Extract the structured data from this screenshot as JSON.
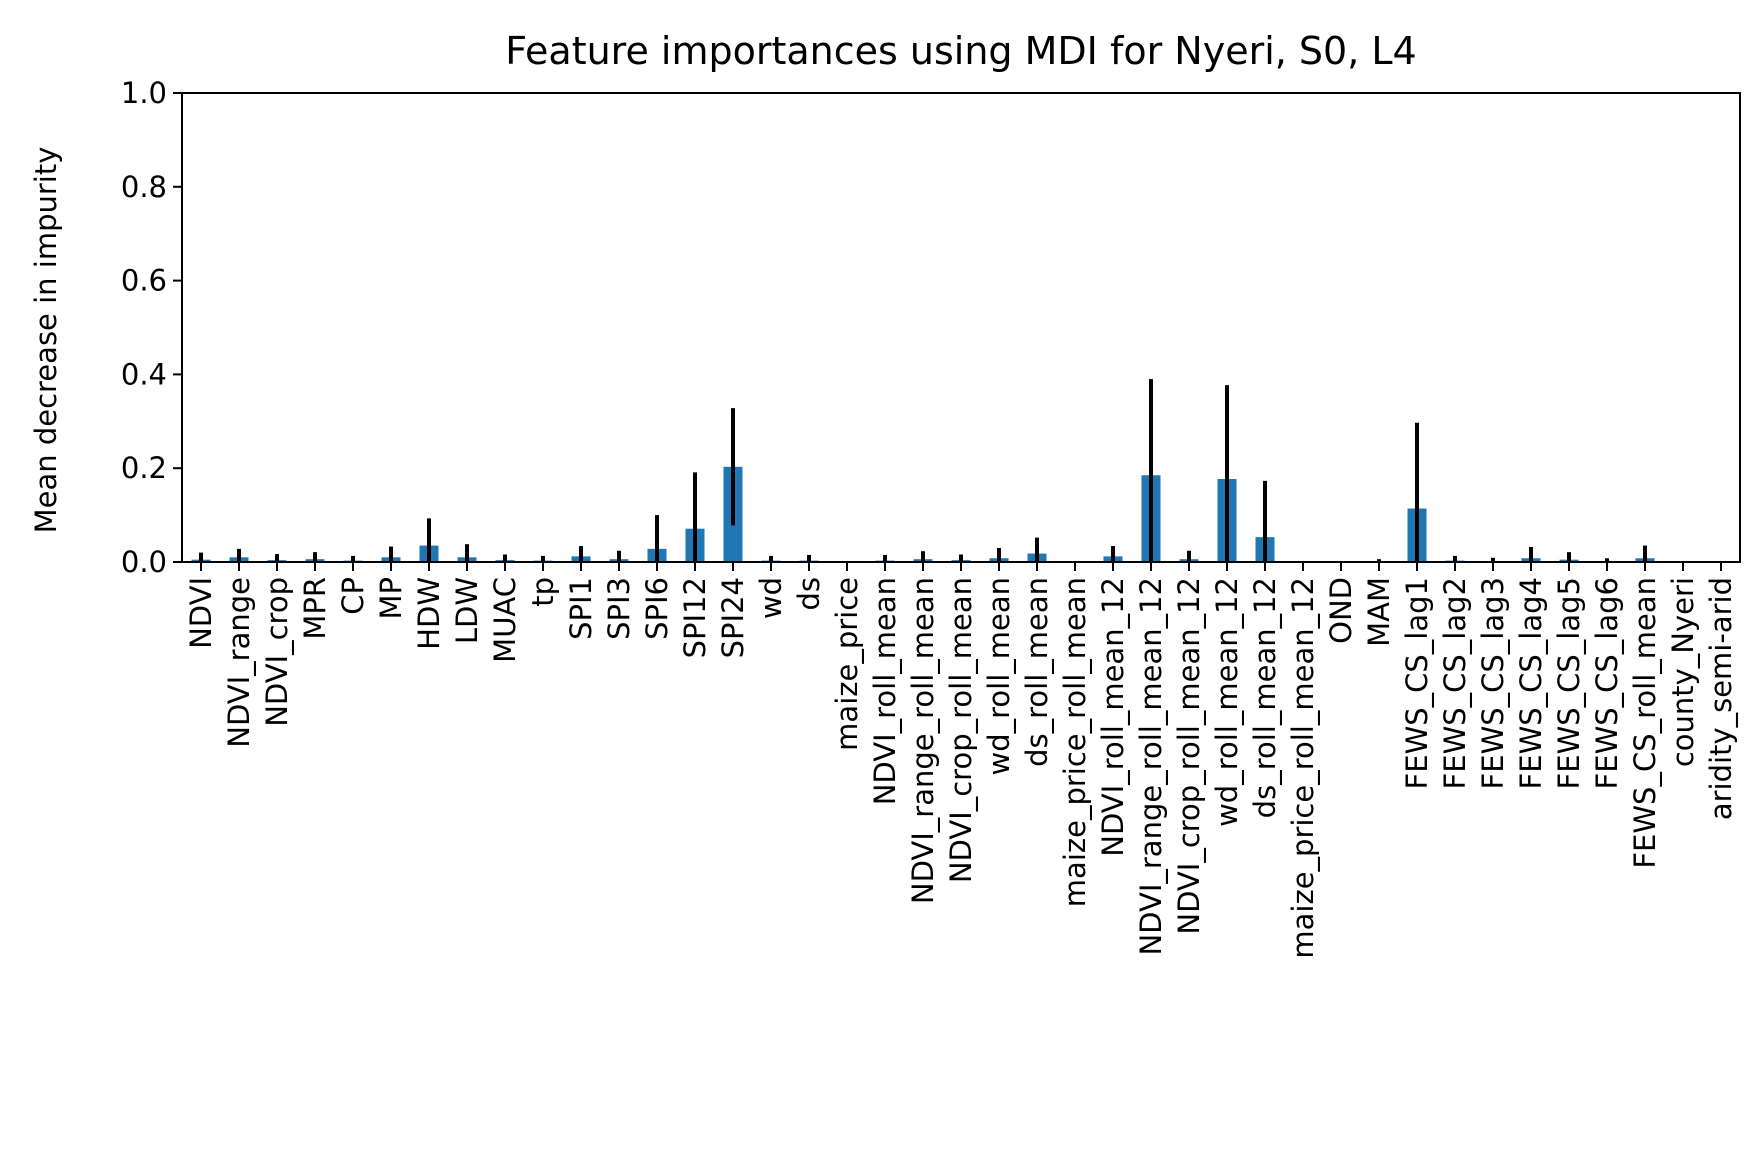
{
  "chart_data": {
    "type": "bar",
    "title": "Feature importances using MDI for Nyeri, S0, L4",
    "xlabel": "",
    "ylabel": "Mean decrease in impurity",
    "ylim": [
      0,
      1.0
    ],
    "yticks": [
      "0.0",
      "0.2",
      "0.4",
      "0.6",
      "0.8",
      "1.0"
    ],
    "grid": false,
    "bar_color": "#1f77b4",
    "errorbar_color": "#000000",
    "categories": [
      "NDVI",
      "NDVI_range",
      "NDVI_crop",
      "MPR",
      "CP",
      "MP",
      "HDW",
      "LDW",
      "MUAC",
      "tp",
      "SPI1",
      "SPI3",
      "SPI6",
      "SPI12",
      "SPI24",
      "wd",
      "ds",
      "maize_price",
      "NDVI_roll_mean",
      "NDVI_range_roll_mean",
      "NDVI_crop_roll_mean",
      "wd_roll_mean",
      "ds_roll_mean",
      "maize_price_roll_mean",
      "NDVI_roll_mean_12",
      "NDVI_range_roll_mean_12",
      "NDVI_crop_roll_mean_12",
      "wd_roll_mean_12",
      "ds_roll_mean_12",
      "maize_price_roll_mean_12",
      "OND",
      "MAM",
      "FEWS_CS_lag1",
      "FEWS_CS_lag2",
      "FEWS_CS_lag3",
      "FEWS_CS_lag4",
      "FEWS_CS_lag5",
      "FEWS_CS_lag6",
      "FEWS_CS_roll_mean",
      "county_Nyeri",
      "aridity_semi-arid"
    ],
    "values": [
      0.005,
      0.01,
      0.004,
      0.006,
      0.003,
      0.01,
      0.035,
      0.01,
      0.004,
      0.003,
      0.012,
      0.006,
      0.028,
      0.071,
      0.203,
      0.003,
      0.003,
      0.0,
      0.003,
      0.006,
      0.004,
      0.008,
      0.018,
      0.0,
      0.012,
      0.185,
      0.006,
      0.177,
      0.053,
      0.0,
      0.0,
      0.001,
      0.114,
      0.003,
      0.002,
      0.008,
      0.005,
      0.002,
      0.008,
      0.0,
      0.0
    ],
    "errors": [
      0.015,
      0.018,
      0.013,
      0.015,
      0.01,
      0.023,
      0.058,
      0.028,
      0.012,
      0.01,
      0.022,
      0.018,
      0.072,
      0.12,
      0.125,
      0.01,
      0.012,
      0.0,
      0.012,
      0.017,
      0.012,
      0.022,
      0.034,
      0.0,
      0.022,
      0.205,
      0.018,
      0.2,
      0.12,
      0.0,
      0.0,
      0.005,
      0.183,
      0.01,
      0.007,
      0.024,
      0.016,
      0.006,
      0.027,
      0.0,
      0.0
    ]
  }
}
